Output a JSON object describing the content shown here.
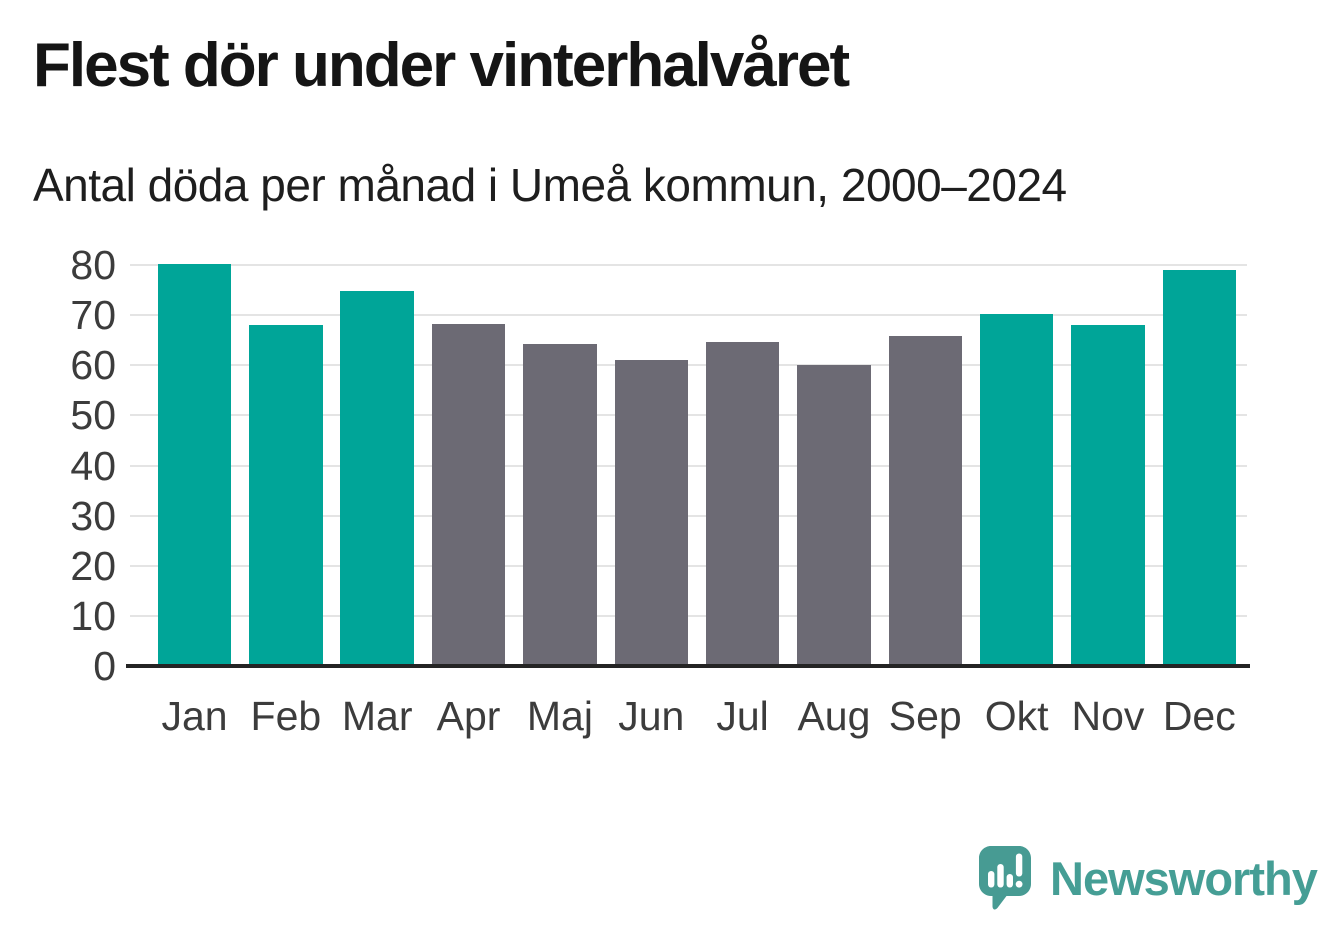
{
  "header": {
    "title": "Flest dör under vinterhalvåret",
    "subtitle": "Antal döda per månad i Umeå kommun, 2000–2024"
  },
  "chart_data": {
    "type": "bar",
    "title": "Flest dör under vinterhalvåret",
    "subtitle": "Antal döda per månad i Umeå kommun, 2000–2024",
    "categories": [
      "Jan",
      "Feb",
      "Mar",
      "Apr",
      "Maj",
      "Jun",
      "Jul",
      "Aug",
      "Sep",
      "Okt",
      "Nov",
      "Dec"
    ],
    "values": [
      80.2,
      68,
      74.8,
      68.3,
      64.2,
      61.1,
      64.6,
      60,
      65.8,
      70.3,
      68,
      79
    ],
    "bar_colors": [
      "teal",
      "teal",
      "teal",
      "gray",
      "gray",
      "gray",
      "gray",
      "gray",
      "gray",
      "teal",
      "teal",
      "teal"
    ],
    "xlabel": "",
    "ylabel": "",
    "ylim": [
      0,
      80
    ],
    "yticks": [
      0,
      10,
      20,
      30,
      40,
      50,
      60,
      70,
      80
    ],
    "grid": true,
    "legend": false
  },
  "colors": {
    "teal": "#00a598",
    "gray": "#6c6a74",
    "grid": "#e4e4e4",
    "axis": "#242424",
    "tick_label": "#3c3c3c",
    "logo": "#479b93",
    "brand_text": "#459e95"
  },
  "footer": {
    "brand": "Newsworthy",
    "logo_icon": "newsworthy-speech-bubble-bar-chart-icon"
  }
}
